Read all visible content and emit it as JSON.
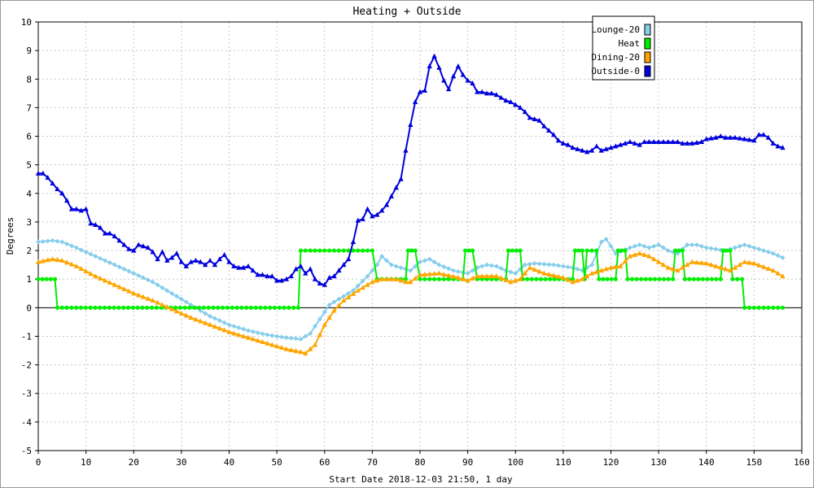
{
  "chart_data": {
    "type": "line",
    "title": "Heating + Outside",
    "xlabel": "Start Date 2018-12-03 21:50, 1 day",
    "ylabel": "Degrees",
    "xlim": [
      0,
      160
    ],
    "ylim": [
      -5,
      10
    ],
    "x_ticks": [
      "0",
      "10",
      "20",
      "30",
      "40",
      "50",
      "60",
      "70",
      "80",
      "90",
      "100",
      "110",
      "120",
      "130",
      "140",
      "150",
      "160"
    ],
    "y_ticks": [
      "-5",
      "-4",
      "-3",
      "-2",
      "-1",
      "0",
      "1",
      "2",
      "3",
      "4",
      "5",
      "6",
      "7",
      "8",
      "9",
      "10"
    ],
    "grid": true,
    "legend_position": "top-right",
    "series": [
      {
        "name": "Lounge-20",
        "color": "#87ceeb",
        "marker": "diamond",
        "points": [
          [
            0,
            2.3
          ],
          [
            3,
            2.35
          ],
          [
            5,
            2.3
          ],
          [
            8,
            2.1
          ],
          [
            12,
            1.8
          ],
          [
            16,
            1.5
          ],
          [
            20,
            1.2
          ],
          [
            24,
            0.9
          ],
          [
            28,
            0.5
          ],
          [
            32,
            0.1
          ],
          [
            36,
            -0.3
          ],
          [
            40,
            -0.6
          ],
          [
            44,
            -0.8
          ],
          [
            48,
            -0.95
          ],
          [
            52,
            -1.05
          ],
          [
            55,
            -1.1
          ],
          [
            57,
            -0.9
          ],
          [
            59,
            -0.4
          ],
          [
            61,
            0.1
          ],
          [
            63,
            0.3
          ],
          [
            66,
            0.6
          ],
          [
            69,
            1.1
          ],
          [
            71,
            1.5
          ],
          [
            72,
            1.8
          ],
          [
            74,
            1.5
          ],
          [
            76,
            1.4
          ],
          [
            78,
            1.3
          ],
          [
            80,
            1.6
          ],
          [
            82,
            1.7
          ],
          [
            84,
            1.5
          ],
          [
            87,
            1.3
          ],
          [
            90,
            1.2
          ],
          [
            92,
            1.4
          ],
          [
            94,
            1.5
          ],
          [
            96,
            1.45
          ],
          [
            98,
            1.3
          ],
          [
            100,
            1.2
          ],
          [
            102,
            1.5
          ],
          [
            104,
            1.55
          ],
          [
            108,
            1.5
          ],
          [
            112,
            1.4
          ],
          [
            114,
            1.3
          ],
          [
            116,
            1.5
          ],
          [
            118,
            2.3
          ],
          [
            119,
            2.4
          ],
          [
            121,
            1.9
          ],
          [
            124,
            2.1
          ],
          [
            126,
            2.2
          ],
          [
            128,
            2.1
          ],
          [
            130,
            2.2
          ],
          [
            132,
            2.0
          ],
          [
            134,
            1.9
          ],
          [
            136,
            2.2
          ],
          [
            138,
            2.2
          ],
          [
            140,
            2.1
          ],
          [
            144,
            2.0
          ],
          [
            146,
            2.1
          ],
          [
            148,
            2.2
          ],
          [
            150,
            2.1
          ],
          [
            154,
            1.9
          ],
          [
            156,
            1.75
          ]
        ]
      },
      {
        "name": "Heat",
        "color": "#00ee00",
        "marker": "circle",
        "points": [
          [
            0,
            1
          ],
          [
            3.5,
            1
          ],
          [
            4,
            0
          ],
          [
            54.5,
            0
          ],
          [
            55,
            2
          ],
          [
            70,
            2
          ],
          [
            71,
            1
          ],
          [
            77,
            1
          ],
          [
            77.5,
            2
          ],
          [
            79,
            2
          ],
          [
            80,
            1
          ],
          [
            89,
            1
          ],
          [
            89.5,
            2
          ],
          [
            91,
            2
          ],
          [
            92,
            1
          ],
          [
            98,
            1
          ],
          [
            98.5,
            2
          ],
          [
            101,
            2
          ],
          [
            101.5,
            1
          ],
          [
            112,
            1
          ],
          [
            112.5,
            2
          ],
          [
            114,
            2
          ],
          [
            114.5,
            1
          ],
          [
            115,
            2
          ],
          [
            117,
            2
          ],
          [
            117.5,
            1
          ],
          [
            121,
            1
          ],
          [
            121.5,
            2
          ],
          [
            123,
            2
          ],
          [
            123.5,
            1
          ],
          [
            133,
            1
          ],
          [
            133.5,
            2
          ],
          [
            135,
            2
          ],
          [
            135.5,
            1
          ],
          [
            143,
            1
          ],
          [
            143.5,
            2
          ],
          [
            145,
            2
          ],
          [
            145.5,
            1
          ],
          [
            147.5,
            1
          ],
          [
            148,
            0
          ],
          [
            156,
            0
          ]
        ]
      },
      {
        "name": "Dining-20",
        "color": "#ffa500",
        "marker": "triangle",
        "points": [
          [
            0,
            1.6
          ],
          [
            3,
            1.7
          ],
          [
            5,
            1.65
          ],
          [
            8,
            1.45
          ],
          [
            12,
            1.1
          ],
          [
            16,
            0.8
          ],
          [
            20,
            0.5
          ],
          [
            24,
            0.25
          ],
          [
            28,
            -0.05
          ],
          [
            32,
            -0.35
          ],
          [
            36,
            -0.6
          ],
          [
            40,
            -0.85
          ],
          [
            44,
            -1.05
          ],
          [
            48,
            -1.25
          ],
          [
            52,
            -1.45
          ],
          [
            55,
            -1.55
          ],
          [
            56,
            -1.6
          ],
          [
            58,
            -1.3
          ],
          [
            60,
            -0.6
          ],
          [
            62,
            -0.1
          ],
          [
            64,
            0.25
          ],
          [
            67,
            0.6
          ],
          [
            70,
            0.9
          ],
          [
            72,
            1.0
          ],
          [
            75,
            1.0
          ],
          [
            77,
            0.9
          ],
          [
            78,
            0.9
          ],
          [
            80,
            1.15
          ],
          [
            84,
            1.2
          ],
          [
            88,
            1.05
          ],
          [
            90,
            0.95
          ],
          [
            92,
            1.1
          ],
          [
            96,
            1.1
          ],
          [
            99,
            0.9
          ],
          [
            101,
            1.0
          ],
          [
            103,
            1.4
          ],
          [
            106,
            1.2
          ],
          [
            110,
            1.05
          ],
          [
            112,
            0.9
          ],
          [
            114,
            1.0
          ],
          [
            116,
            1.2
          ],
          [
            118,
            1.3
          ],
          [
            120,
            1.4
          ],
          [
            122,
            1.45
          ],
          [
            124,
            1.8
          ],
          [
            126,
            1.9
          ],
          [
            128,
            1.8
          ],
          [
            130,
            1.6
          ],
          [
            132,
            1.4
          ],
          [
            134,
            1.3
          ],
          [
            137,
            1.6
          ],
          [
            140,
            1.55
          ],
          [
            143,
            1.4
          ],
          [
            145,
            1.3
          ],
          [
            148,
            1.6
          ],
          [
            150,
            1.55
          ],
          [
            154,
            1.3
          ],
          [
            156,
            1.1
          ]
        ]
      },
      {
        "name": "Outside-0",
        "color": "#0000dd",
        "marker": "triangle",
        "points": [
          [
            0,
            4.7
          ],
          [
            1,
            4.7
          ],
          [
            2,
            4.55
          ],
          [
            3,
            4.35
          ],
          [
            4,
            4.15
          ],
          [
            5,
            4.0
          ],
          [
            6,
            3.75
          ],
          [
            7,
            3.45
          ],
          [
            8,
            3.45
          ],
          [
            9,
            3.4
          ],
          [
            10,
            3.45
          ],
          [
            11,
            2.95
          ],
          [
            12,
            2.9
          ],
          [
            13,
            2.8
          ],
          [
            14,
            2.6
          ],
          [
            15,
            2.6
          ],
          [
            16,
            2.5
          ],
          [
            17,
            2.35
          ],
          [
            18,
            2.2
          ],
          [
            19,
            2.05
          ],
          [
            20,
            2.0
          ],
          [
            21,
            2.2
          ],
          [
            22,
            2.15
          ],
          [
            23,
            2.1
          ],
          [
            24,
            1.95
          ],
          [
            25,
            1.7
          ],
          [
            26,
            1.95
          ],
          [
            27,
            1.65
          ],
          [
            28,
            1.75
          ],
          [
            29,
            1.9
          ],
          [
            30,
            1.6
          ],
          [
            31,
            1.45
          ],
          [
            32,
            1.6
          ],
          [
            33,
            1.65
          ],
          [
            34,
            1.6
          ],
          [
            35,
            1.5
          ],
          [
            36,
            1.65
          ],
          [
            37,
            1.5
          ],
          [
            38,
            1.7
          ],
          [
            39,
            1.85
          ],
          [
            40,
            1.6
          ],
          [
            41,
            1.45
          ],
          [
            42,
            1.4
          ],
          [
            43,
            1.4
          ],
          [
            44,
            1.45
          ],
          [
            45,
            1.3
          ],
          [
            46,
            1.15
          ],
          [
            47,
            1.15
          ],
          [
            48,
            1.1
          ],
          [
            49,
            1.1
          ],
          [
            50,
            0.95
          ],
          [
            51,
            0.95
          ],
          [
            52,
            1.0
          ],
          [
            53,
            1.1
          ],
          [
            54,
            1.35
          ],
          [
            55,
            1.45
          ],
          [
            56,
            1.2
          ],
          [
            57,
            1.35
          ],
          [
            58,
            1.0
          ],
          [
            59,
            0.85
          ],
          [
            60,
            0.8
          ],
          [
            61,
            1.05
          ],
          [
            62,
            1.1
          ],
          [
            63,
            1.3
          ],
          [
            64,
            1.5
          ],
          [
            65,
            1.7
          ],
          [
            66,
            2.3
          ],
          [
            67,
            3.05
          ],
          [
            68,
            3.1
          ],
          [
            69,
            3.45
          ],
          [
            70,
            3.2
          ],
          [
            71,
            3.25
          ],
          [
            72,
            3.4
          ],
          [
            73,
            3.6
          ],
          [
            74,
            3.9
          ],
          [
            75,
            4.2
          ],
          [
            76,
            4.5
          ],
          [
            77,
            5.5
          ],
          [
            78,
            6.4
          ],
          [
            79,
            7.2
          ],
          [
            80,
            7.55
          ],
          [
            81,
            7.6
          ],
          [
            82,
            8.45
          ],
          [
            83,
            8.8
          ],
          [
            84,
            8.4
          ],
          [
            85,
            7.95
          ],
          [
            86,
            7.65
          ],
          [
            87,
            8.1
          ],
          [
            88,
            8.45
          ],
          [
            89,
            8.15
          ],
          [
            90,
            7.95
          ],
          [
            91,
            7.85
          ],
          [
            92,
            7.55
          ],
          [
            93,
            7.55
          ],
          [
            94,
            7.5
          ],
          [
            95,
            7.5
          ],
          [
            96,
            7.45
          ],
          [
            97,
            7.35
          ],
          [
            98,
            7.25
          ],
          [
            99,
            7.2
          ],
          [
            100,
            7.1
          ],
          [
            101,
            7.0
          ],
          [
            102,
            6.85
          ],
          [
            103,
            6.65
          ],
          [
            104,
            6.6
          ],
          [
            105,
            6.55
          ],
          [
            106,
            6.35
          ],
          [
            107,
            6.2
          ],
          [
            108,
            6.05
          ],
          [
            109,
            5.85
          ],
          [
            110,
            5.75
          ],
          [
            111,
            5.7
          ],
          [
            112,
            5.6
          ],
          [
            113,
            5.55
          ],
          [
            114,
            5.5
          ],
          [
            115,
            5.45
          ],
          [
            116,
            5.5
          ],
          [
            117,
            5.65
          ],
          [
            118,
            5.5
          ],
          [
            119,
            5.55
          ],
          [
            120,
            5.6
          ],
          [
            121,
            5.65
          ],
          [
            122,
            5.7
          ],
          [
            123,
            5.75
          ],
          [
            124,
            5.8
          ],
          [
            125,
            5.75
          ],
          [
            126,
            5.7
          ],
          [
            127,
            5.8
          ],
          [
            128,
            5.8
          ],
          [
            130,
            5.8
          ],
          [
            132,
            5.8
          ],
          [
            134,
            5.8
          ],
          [
            135,
            5.75
          ],
          [
            137,
            5.75
          ],
          [
            139,
            5.8
          ],
          [
            140,
            5.9
          ],
          [
            142,
            5.95
          ],
          [
            143,
            6.0
          ],
          [
            144,
            5.95
          ],
          [
            146,
            5.95
          ],
          [
            148,
            5.9
          ],
          [
            150,
            5.85
          ],
          [
            151,
            6.05
          ],
          [
            152,
            6.05
          ],
          [
            153,
            5.95
          ],
          [
            154,
            5.75
          ],
          [
            155,
            5.65
          ],
          [
            156,
            5.6
          ]
        ]
      }
    ]
  }
}
